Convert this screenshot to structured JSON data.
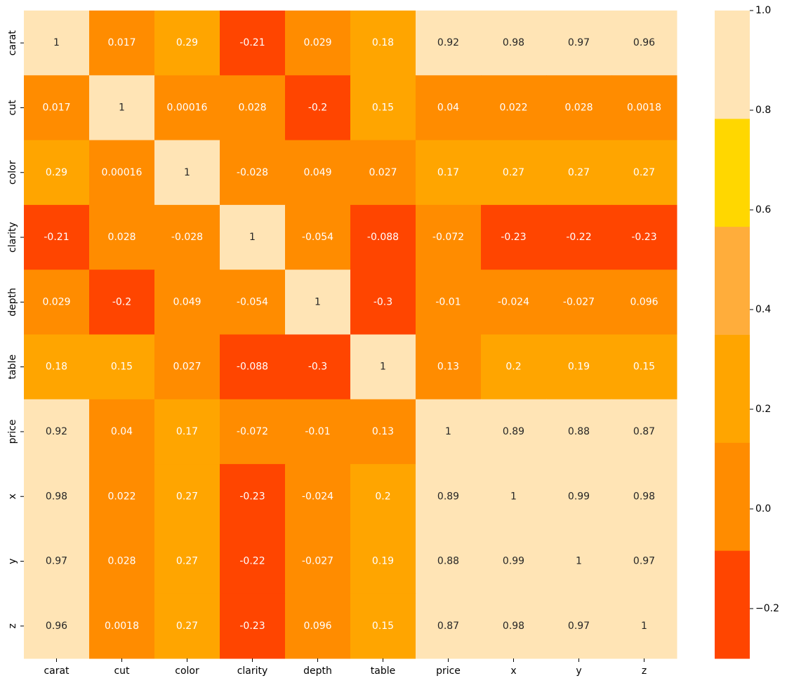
{
  "chart_data": {
    "type": "heatmap",
    "title": "",
    "xlabel": "",
    "ylabel": "",
    "row_labels": [
      "carat",
      "cut",
      "color",
      "clarity",
      "depth",
      "table",
      "price",
      "x",
      "y",
      "z"
    ],
    "col_labels": [
      "carat",
      "cut",
      "color",
      "clarity",
      "depth",
      "table",
      "price",
      "x",
      "y",
      "z"
    ],
    "values": [
      [
        1,
        0.017,
        0.29,
        -0.21,
        0.029,
        0.18,
        0.92,
        0.98,
        0.97,
        0.96
      ],
      [
        0.017,
        1,
        0.00016,
        0.028,
        -0.2,
        0.15,
        0.04,
        0.022,
        0.028,
        0.0018
      ],
      [
        0.29,
        0.00016,
        1,
        -0.028,
        0.049,
        0.027,
        0.17,
        0.27,
        0.27,
        0.27
      ],
      [
        -0.21,
        0.028,
        -0.028,
        1,
        -0.054,
        -0.088,
        -0.072,
        -0.23,
        -0.22,
        -0.23
      ],
      [
        0.029,
        -0.2,
        0.049,
        -0.054,
        1,
        -0.3,
        -0.01,
        -0.024,
        -0.027,
        0.096
      ],
      [
        0.18,
        0.15,
        0.027,
        -0.088,
        -0.3,
        1,
        0.13,
        0.2,
        0.19,
        0.15
      ],
      [
        0.92,
        0.04,
        0.17,
        -0.072,
        -0.01,
        0.13,
        1,
        0.89,
        0.88,
        0.87
      ],
      [
        0.98,
        0.022,
        0.27,
        -0.23,
        -0.024,
        0.2,
        0.89,
        1,
        0.99,
        0.98
      ],
      [
        0.97,
        0.028,
        0.27,
        -0.22,
        -0.027,
        0.19,
        0.88,
        0.99,
        1,
        0.97
      ],
      [
        0.96,
        0.0018,
        0.27,
        -0.23,
        0.096,
        0.15,
        0.87,
        0.98,
        0.97,
        1
      ]
    ],
    "value_labels": [
      [
        "1",
        "0.017",
        "0.29",
        "-0.21",
        "0.029",
        "0.18",
        "0.92",
        "0.98",
        "0.97",
        "0.96"
      ],
      [
        "0.017",
        "1",
        "0.00016",
        "0.028",
        "-0.2",
        "0.15",
        "0.04",
        "0.022",
        "0.028",
        "0.0018"
      ],
      [
        "0.29",
        "0.00016",
        "1",
        "-0.028",
        "0.049",
        "0.027",
        "0.17",
        "0.27",
        "0.27",
        "0.27"
      ],
      [
        "-0.21",
        "0.028",
        "-0.028",
        "1",
        "-0.054",
        "-0.088",
        "-0.072",
        "-0.23",
        "-0.22",
        "-0.23"
      ],
      [
        "0.029",
        "-0.2",
        "0.049",
        "-0.054",
        "1",
        "-0.3",
        "-0.01",
        "-0.024",
        "-0.027",
        "0.096"
      ],
      [
        "0.18",
        "0.15",
        "0.027",
        "-0.088",
        "-0.3",
        "1",
        "0.13",
        "0.2",
        "0.19",
        "0.15"
      ],
      [
        "0.92",
        "0.04",
        "0.17",
        "-0.072",
        "-0.01",
        "0.13",
        "1",
        "0.89",
        "0.88",
        "0.87"
      ],
      [
        "0.98",
        "0.022",
        "0.27",
        "-0.23",
        "-0.024",
        "0.2",
        "0.89",
        "1",
        "0.99",
        "0.98"
      ],
      [
        "0.97",
        "0.028",
        "0.27",
        "-0.22",
        "-0.027",
        "0.19",
        "0.88",
        "0.99",
        "1",
        "0.97"
      ],
      [
        "0.96",
        "0.0018",
        "0.27",
        "-0.23",
        "0.096",
        "0.15",
        "0.87",
        "0.98",
        "0.97",
        "1"
      ]
    ],
    "colorbar": {
      "vmin": -0.3,
      "vmax": 1.0,
      "bins": [
        {
          "from": -0.3,
          "to": -0.0833,
          "color": "#ff4500"
        },
        {
          "from": -0.0833,
          "to": 0.1333,
          "color": "#ff8c00"
        },
        {
          "from": 0.1333,
          "to": 0.35,
          "color": "#ffa500"
        },
        {
          "from": 0.35,
          "to": 0.5667,
          "color": "#ffad3b"
        },
        {
          "from": 0.5667,
          "to": 0.7833,
          "color": "#ffd700"
        },
        {
          "from": 0.7833,
          "to": 1.0,
          "color": "#ffe4b5"
        }
      ],
      "ticks": [
        -0.2,
        0.0,
        0.2,
        0.4,
        0.6,
        0.8,
        1.0
      ],
      "tick_labels": [
        "−0.2",
        "0.0",
        "0.2",
        "0.4",
        "0.6",
        "0.8",
        "1.0"
      ]
    },
    "annotation_colors": {
      "dark": "#262626",
      "light": "#ffffff",
      "threshold": 0.35
    }
  }
}
